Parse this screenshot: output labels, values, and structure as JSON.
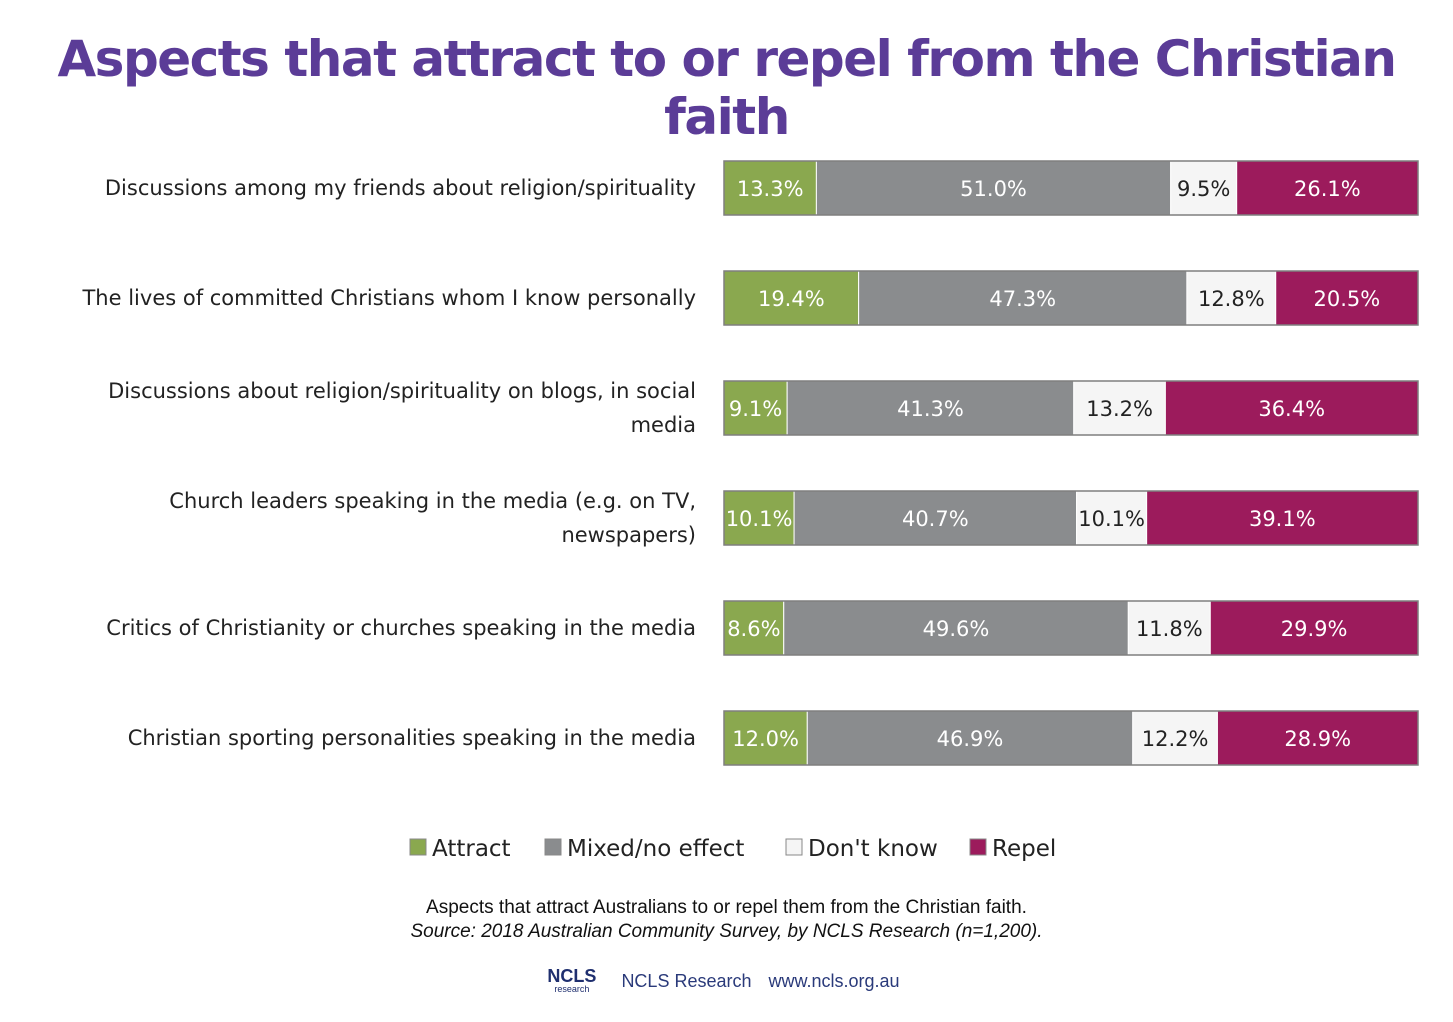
{
  "colors": {
    "title": "#5b3c97",
    "attract": "#8aa84f",
    "mixed": "#8a8c8e",
    "dont_know": "#f5f5f5",
    "repel": "#9c1b5c",
    "border": "#7f7f7f"
  },
  "chart_data": {
    "type": "bar",
    "orientation": "horizontal",
    "stacked": true,
    "percent_stacked": true,
    "title": "Aspects that attract to or repel from the Christian faith",
    "categories": [
      "Discussions among my friends about religion/spirituality",
      "The lives of committed Christians whom I know personally",
      "Discussions about religion/spirituality on blogs, in social media",
      "Church leaders speaking in the media (e.g. on TV, newspapers)",
      "Critics of Christianity or churches speaking in the media",
      "Christian sporting personalities speaking in the media"
    ],
    "category_lines": [
      [
        "Discussions among my friends about religion/spirituality"
      ],
      [
        "The lives of committed Christians whom I know personally"
      ],
      [
        "Discussions about religion/spirituality on blogs, in social",
        "media"
      ],
      [
        "Church leaders speaking in the media (e.g. on TV,",
        "newspapers)"
      ],
      [
        "Critics of Christianity or churches speaking in the media"
      ],
      [
        "Christian sporting personalities speaking in the media"
      ]
    ],
    "series": [
      {
        "name": "Attract",
        "color_key": "attract",
        "values": [
          13.3,
          19.4,
          9.1,
          10.1,
          8.6,
          12.0
        ],
        "labels": [
          "13.3%",
          "19.4%",
          "9.1%",
          "10.1%",
          "8.6%",
          "12.0%"
        ]
      },
      {
        "name": "Mixed/no effect",
        "color_key": "mixed",
        "values": [
          51.0,
          47.3,
          41.3,
          40.7,
          49.6,
          46.9
        ],
        "labels": [
          "51.0%",
          "47.3%",
          "41.3%",
          "40.7%",
          "49.6%",
          "46.9%"
        ]
      },
      {
        "name": "Don't know",
        "color_key": "dont_know",
        "values": [
          9.5,
          12.8,
          13.2,
          10.1,
          11.8,
          12.2
        ],
        "labels": [
          "9.5%",
          "12.8%",
          "13.2%",
          "10.1%",
          "11.8%",
          "12.2%"
        ]
      },
      {
        "name": "Repel",
        "color_key": "repel",
        "values": [
          26.1,
          20.5,
          36.4,
          39.1,
          29.9,
          28.9
        ],
        "labels": [
          "26.1%",
          "20.5%",
          "36.4%",
          "39.1%",
          "29.9%",
          "28.9%"
        ]
      }
    ],
    "legend_position": "bottom",
    "grid": false
  },
  "caption": {
    "line1": "Aspects that attract Australians to or repel them from the Christian faith.",
    "line2": "Source: 2018 Australian Community Survey, by NCLS Research (n=1,200)."
  },
  "footer": {
    "logo_text": "NCLS",
    "logo_sub": "research",
    "org": "NCLS Research",
    "url": "www.ncls.org.au"
  }
}
